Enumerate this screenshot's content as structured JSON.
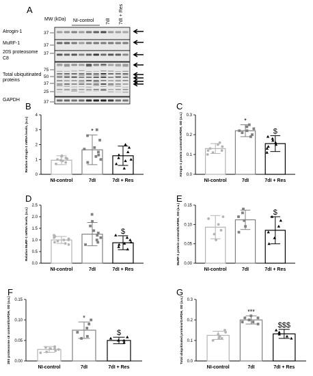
{
  "blot": {
    "panel": "A",
    "mw_header": "MW (kDa)",
    "groups": [
      "NI-control",
      "7dI",
      "7dI + Res"
    ],
    "rows": [
      {
        "label": "Atrogin-1",
        "mw": [
          "37"
        ]
      },
      {
        "label": "MuRF-1",
        "mw": [
          "37"
        ]
      },
      {
        "label": "20S proteosome C8",
        "mw": [
          "37"
        ]
      },
      {
        "label": "Total ubiquitinated proteins",
        "mw": [
          "75",
          "50",
          "37",
          "25"
        ]
      },
      {
        "label": "GAPDH",
        "mw": [
          "37"
        ]
      }
    ]
  },
  "chart_data": [
    {
      "panel": "B",
      "type": "bar",
      "ylabel": "Relative Atrogin-1 mRNA levels, (a.u.)",
      "ylim": [
        0,
        4
      ],
      "yticks": [
        "0",
        "1",
        "2",
        "3",
        "4"
      ],
      "categories": [
        "NI-control",
        "7dI",
        "7dI + Res"
      ],
      "values": [
        0.95,
        1.65,
        1.25
      ],
      "errors": [
        0.3,
        1.0,
        0.65
      ],
      "points": [
        [
          0.7,
          0.8,
          0.9,
          0.95,
          1.0,
          1.05,
          1.1,
          1.2,
          1.25
        ],
        [
          0.8,
          1.0,
          1.2,
          1.3,
          1.5,
          1.7,
          1.8,
          2.3,
          2.6,
          3.0
        ],
        [
          0.4,
          0.7,
          0.9,
          1.0,
          1.1,
          1.3,
          1.5,
          1.8,
          2.0
        ]
      ],
      "markers": [
        "circle",
        "square",
        "triangle"
      ],
      "significance": [
        "",
        "*",
        ""
      ]
    },
    {
      "panel": "C",
      "type": "bar",
      "ylabel": "Atrogin-1 protein content/GAPDH, OD (a.u.)",
      "ylim": [
        0,
        0.3
      ],
      "yticks": [
        "0.0",
        "0.1",
        "0.2",
        "0.3"
      ],
      "categories": [
        "NI-control",
        "7dI",
        "7dI + Res"
      ],
      "values": [
        0.13,
        0.22,
        0.155
      ],
      "errors": [
        0.025,
        0.03,
        0.04
      ],
      "points": [
        [
          0.1,
          0.11,
          0.12,
          0.13,
          0.14,
          0.15,
          0.16,
          0.12
        ],
        [
          0.19,
          0.2,
          0.21,
          0.22,
          0.23,
          0.24,
          0.25,
          0.22
        ],
        [
          0.11,
          0.13,
          0.15,
          0.16,
          0.17,
          0.18,
          0.19,
          0.14
        ]
      ],
      "markers": [
        "circle",
        "square",
        "triangle"
      ],
      "significance": [
        "",
        "*",
        "$"
      ]
    },
    {
      "panel": "D",
      "type": "bar",
      "ylabel": "Relative MuRF-1 mRNA levels, (a.u.)",
      "ylim": [
        0,
        2.5
      ],
      "yticks": [
        "0.0",
        "0.5",
        "1.0",
        "1.5",
        "2.0",
        "2.5"
      ],
      "categories": [
        "NI-control",
        "7dI",
        "7dI + Res"
      ],
      "values": [
        1.0,
        1.25,
        0.88
      ],
      "errors": [
        0.15,
        0.5,
        0.3
      ],
      "points": [
        [
          0.8,
          0.85,
          0.9,
          0.95,
          1.0,
          1.0,
          1.05,
          1.1,
          1.15,
          1.2
        ],
        [
          0.8,
          0.9,
          1.0,
          1.1,
          1.2,
          1.3,
          1.4,
          1.6,
          1.8,
          2.1
        ],
        [
          0.6,
          0.7,
          0.8,
          0.85,
          0.9,
          1.0,
          1.1,
          1.2
        ]
      ],
      "markers": [
        "circle",
        "square",
        "triangle"
      ],
      "significance": [
        "",
        "",
        "$"
      ]
    },
    {
      "panel": "E",
      "type": "bar",
      "ylabel": "MuRF-1 protein content/GAPDH, OD (a.u.)",
      "ylim": [
        0,
        0.15
      ],
      "yticks": [
        "0.00",
        "0.05",
        "0.10",
        "0.15"
      ],
      "categories": [
        "NI-control",
        "7dI",
        "7dI + Res"
      ],
      "values": [
        0.093,
        0.112,
        0.085
      ],
      "errors": [
        0.03,
        0.025,
        0.035
      ],
      "points": [
        [
          0.06,
          0.075,
          0.085,
          0.1,
          0.115,
          0.12
        ],
        [
          0.08,
          0.095,
          0.11,
          0.12,
          0.13,
          0.14
        ],
        [
          0.05,
          0.065,
          0.08,
          0.095,
          0.11,
          0.12
        ]
      ],
      "markers": [
        "circle",
        "square",
        "triangle"
      ],
      "significance": [
        "",
        "",
        "$"
      ]
    },
    {
      "panel": "F",
      "type": "bar",
      "ylabel": "20S proteosome c8 content/GAPDH, OD (a.u.)",
      "ylim": [
        0,
        0.15
      ],
      "yticks": [
        "0.00",
        "0.05",
        "0.10",
        "0.15"
      ],
      "categories": [
        "NI-control",
        "7dI",
        "7dI + Res"
      ],
      "values": [
        0.028,
        0.075,
        0.05
      ],
      "errors": [
        0.007,
        0.02,
        0.008
      ],
      "points": [
        [
          0.02,
          0.025,
          0.028,
          0.03,
          0.033,
          0.035,
          0.022,
          0.03
        ],
        [
          0.055,
          0.06,
          0.07,
          0.08,
          0.09,
          0.1
        ],
        [
          0.045,
          0.05,
          0.05,
          0.055,
          0.058
        ]
      ],
      "markers": [
        "circle",
        "square",
        "triangle"
      ],
      "significance": [
        "",
        "*",
        "$"
      ]
    },
    {
      "panel": "G",
      "type": "bar",
      "ylabel": "Total ubiquitinated proteins/GAPDH, OD (a.u.)",
      "ylim": [
        0,
        0.3
      ],
      "yticks": [
        "0.0",
        "0.1",
        "0.2",
        "0.3"
      ],
      "categories": [
        "NI-control",
        "7dI",
        "7dI + Res"
      ],
      "values": [
        0.125,
        0.2,
        0.132
      ],
      "errors": [
        0.02,
        0.02,
        0.022
      ],
      "points": [
        [
          0.1,
          0.11,
          0.12,
          0.13,
          0.14,
          0.15,
          0.11
        ],
        [
          0.18,
          0.19,
          0.2,
          0.2,
          0.21,
          0.22,
          0.19,
          0.21
        ],
        [
          0.11,
          0.12,
          0.13,
          0.14,
          0.15
        ]
      ],
      "markers": [
        "circle",
        "square",
        "triangle"
      ],
      "significance": [
        "",
        "***",
        "$$$"
      ]
    }
  ],
  "colors": {
    "control": "#b3b3b3",
    "immobilized": "#808080",
    "resveratrol": "#000000"
  }
}
